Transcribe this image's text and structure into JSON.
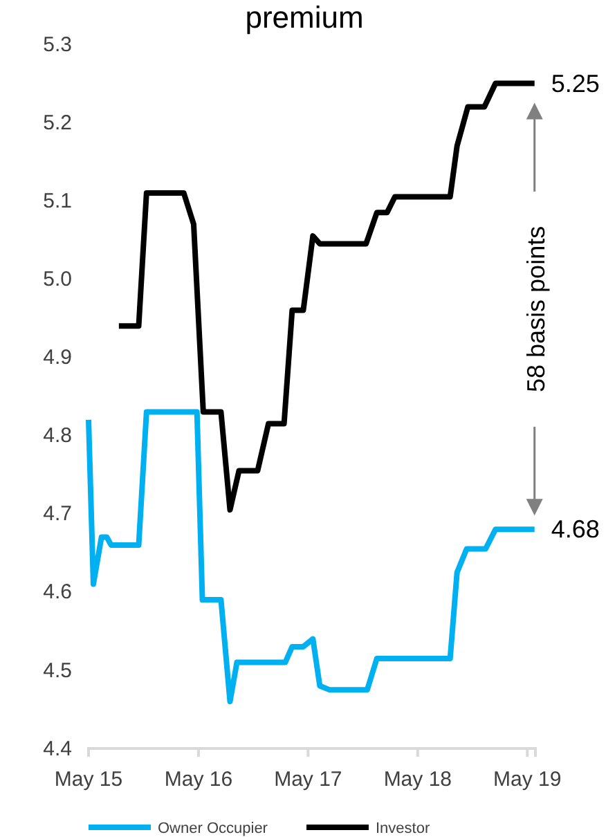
{
  "chart_data": {
    "type": "line",
    "title": "premium",
    "xlim": [
      "2015-05-01",
      "2019-05-28"
    ],
    "xticks": [
      {
        "value": "2015-05-01",
        "label": "May 15"
      },
      {
        "value": "2016-05-01",
        "label": "May 16"
      },
      {
        "value": "2017-05-01",
        "label": "May 17"
      },
      {
        "value": "2018-05-01",
        "label": "May 18"
      },
      {
        "value": "2019-05-01",
        "label": "May 19"
      }
    ],
    "ylim": [
      4.4,
      5.3
    ],
    "yticks": [
      4.4,
      4.5,
      4.6,
      4.7,
      4.8,
      4.9,
      {
        "value": 5,
        "label": "5.0"
      },
      5.1,
      5.2,
      5.3
    ],
    "grid": false,
    "legend": "bottom",
    "marker": "none",
    "line_style": "solid",
    "series": [
      {
        "name": "Owner Occupier",
        "color": "#00b0f0",
        "x": [
          "2015-05-01",
          "2015-05-17",
          "2015-06-13",
          "2015-07-01",
          "2015-07-15",
          "2015-10-15",
          "2015-11-10",
          "2016-04-26",
          "2016-05-14",
          "2016-07-15",
          "2016-08-14",
          "2016-09-06",
          "2017-02-14",
          "2017-03-09",
          "2017-04-15",
          "2017-05-17",
          "2017-06-09",
          "2017-07-11",
          "2017-11-14",
          "2017-12-16",
          "2018-08-17",
          "2018-09-09",
          "2018-10-11",
          "2018-12-13",
          "2019-01-15",
          "2019-05-25"
        ],
        "values": [
          4.82,
          4.61,
          4.67,
          4.67,
          4.66,
          4.66,
          4.83,
          4.83,
          4.59,
          4.59,
          4.46,
          4.51,
          4.51,
          4.53,
          4.53,
          4.54,
          4.48,
          4.475,
          4.475,
          4.515,
          4.515,
          4.625,
          4.655,
          4.655,
          4.68,
          4.68
        ]
      },
      {
        "name": "Investor",
        "color": "#000000",
        "x": [
          "2015-08-10",
          "2015-10-15",
          "2015-11-10",
          "2016-03-13",
          "2016-04-15",
          "2016-05-17",
          "2016-07-15",
          "2016-08-14",
          "2016-09-13",
          "2016-11-14",
          "2016-12-20",
          "2017-02-10",
          "2017-03-09",
          "2017-04-15",
          "2017-05-17",
          "2017-06-09",
          "2017-11-10",
          "2017-12-16",
          "2018-01-19",
          "2018-02-14",
          "2018-08-17",
          "2018-09-09",
          "2018-10-15",
          "2018-12-09",
          "2019-01-15",
          "2019-05-25"
        ],
        "values": [
          4.94,
          4.94,
          5.11,
          5.11,
          5.07,
          4.83,
          4.83,
          4.705,
          4.755,
          4.755,
          4.815,
          4.815,
          4.96,
          4.96,
          5.055,
          5.045,
          5.045,
          5.085,
          5.085,
          5.105,
          5.105,
          5.17,
          5.22,
          5.22,
          5.25,
          5.25
        ]
      }
    ],
    "annotations": [
      {
        "text": "5.25",
        "x": "2019-05-25",
        "y": 5.25
      },
      {
        "text": "4.68",
        "x": "2019-05-25",
        "y": 4.68
      },
      "58 basis points"
    ]
  }
}
